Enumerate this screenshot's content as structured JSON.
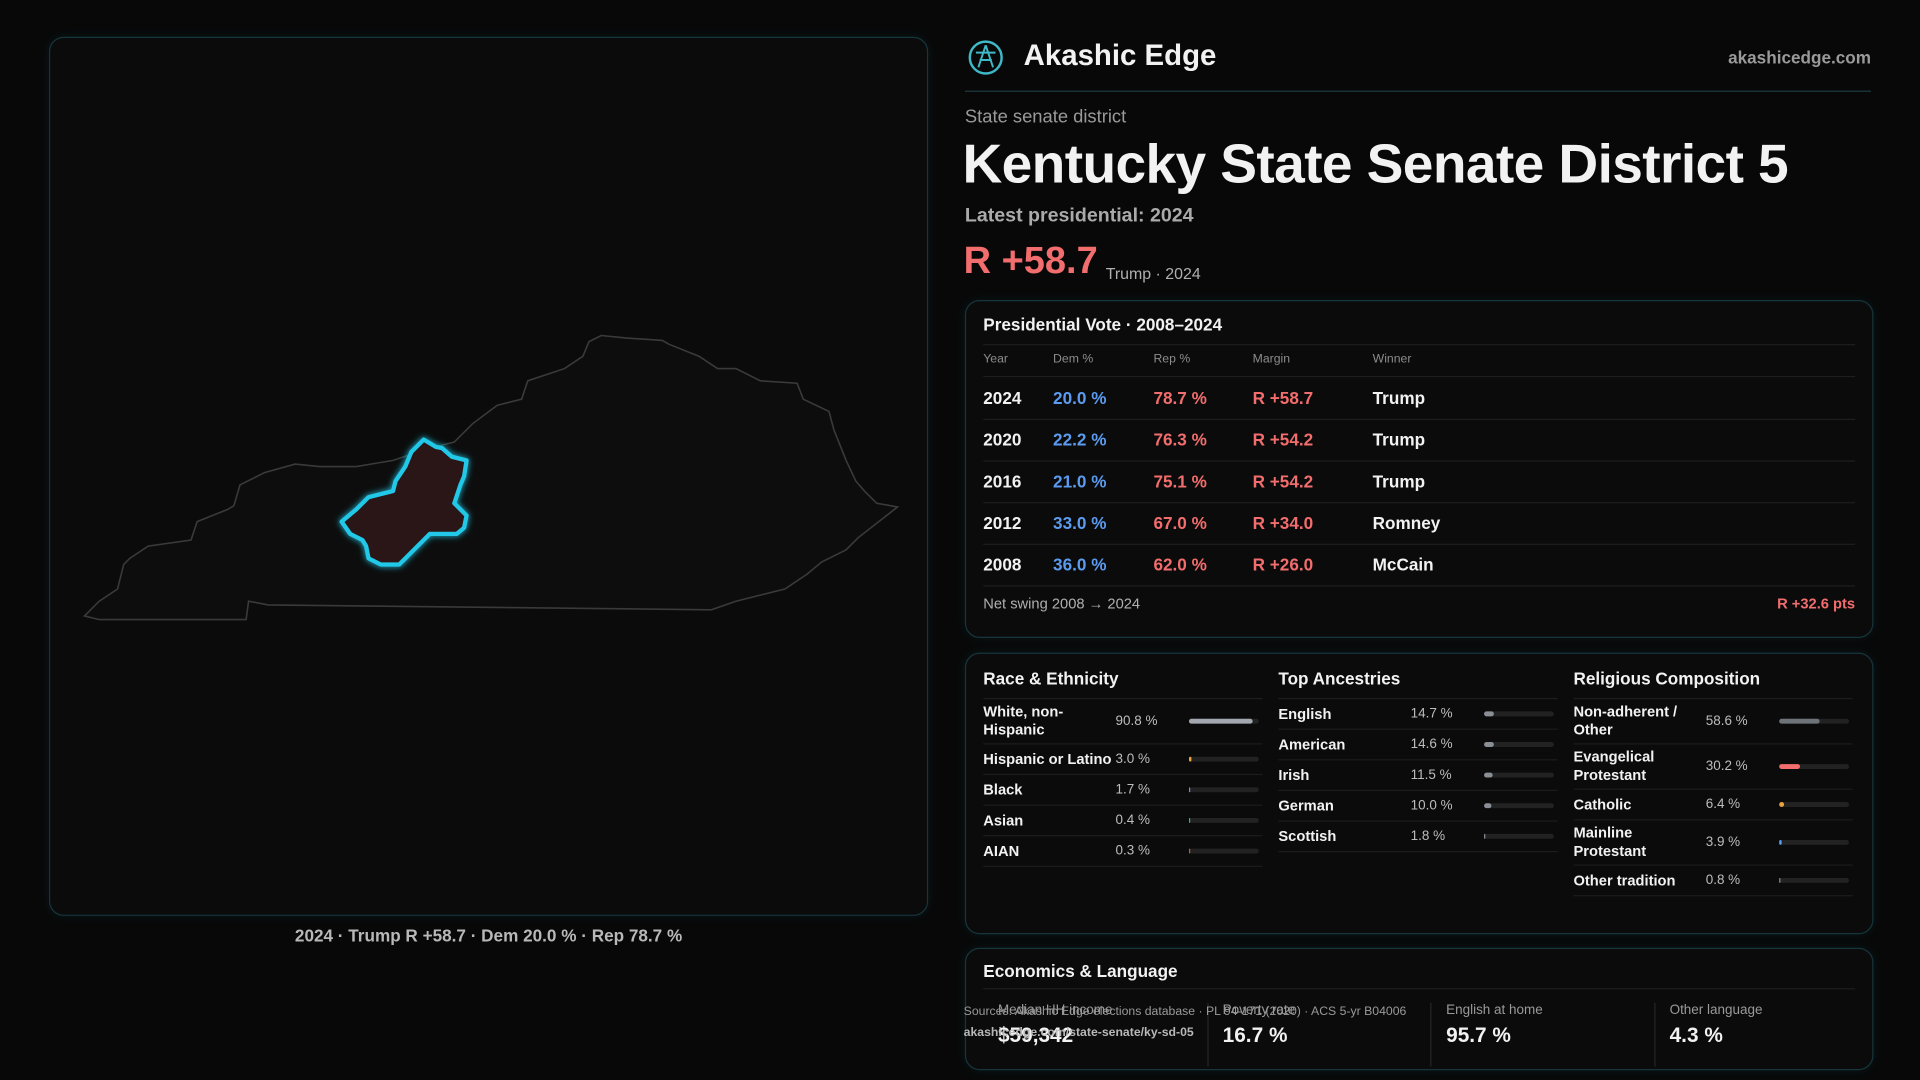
{
  "map": {
    "caption": "2024 · Trump R +58.7 · Dem 20.0 % · Rep 78.7 %"
  },
  "header": {
    "brand": "Akashic Edge",
    "site": "akashicedge.com"
  },
  "hero": {
    "eyebrow": "State senate district",
    "title": "Kentucky State Senate District 5",
    "latest": "Latest presidential: 2024",
    "margin": "R +58.7",
    "margin_note": "Trump · 2024"
  },
  "presidential": {
    "title": "Presidential Vote · 2008–2024",
    "columns": [
      "Year",
      "Dem %",
      "Rep %",
      "Margin",
      "Winner"
    ],
    "rows": [
      [
        "2024",
        "20.0 %",
        "78.7 %",
        "R +58.7",
        "Trump"
      ],
      [
        "2020",
        "22.2 %",
        "76.3 %",
        "R +54.2",
        "Trump"
      ],
      [
        "2016",
        "21.0 %",
        "75.1 %",
        "R +54.2",
        "Trump"
      ],
      [
        "2012",
        "33.0 %",
        "67.0 %",
        "R +34.0",
        "Romney"
      ],
      [
        "2008",
        "36.0 %",
        "62.0 %",
        "R +26.0",
        "McCain"
      ]
    ],
    "swing_label": "Net swing 2008 → 2024",
    "swing_value": "R +32.6 pts"
  },
  "demographics": [
    {
      "title": "Race & Ethnicity",
      "rows": [
        {
          "label": "White, non-Hispanic",
          "value": 90.8,
          "value_label": "90.8 %",
          "color": "#a3a8b0"
        },
        {
          "label": "Hispanic or Latino",
          "value": 3.0,
          "value_label": "3.0 %",
          "color": "#e8a33c"
        },
        {
          "label": "Black",
          "value": 1.7,
          "value_label": "1.7 %",
          "color": "#7a86f0"
        },
        {
          "label": "Asian",
          "value": 0.4,
          "value_label": "0.4 %",
          "color": "#2bb39a"
        },
        {
          "label": "AIAN",
          "value": 0.3,
          "value_label": "0.3 %",
          "color": "#c0583c"
        }
      ]
    },
    {
      "title": "Top Ancestries",
      "rows": [
        {
          "label": "English",
          "value": 14.7,
          "value_label": "14.7 %",
          "color": "#8a8f96"
        },
        {
          "label": "American",
          "value": 14.6,
          "value_label": "14.6 %",
          "color": "#8a8f96"
        },
        {
          "label": "Irish",
          "value": 11.5,
          "value_label": "11.5 %",
          "color": "#8a8f96"
        },
        {
          "label": "German",
          "value": 10.0,
          "value_label": "10.0 %",
          "color": "#8a8f96"
        },
        {
          "label": "Scottish",
          "value": 1.8,
          "value_label": "1.8 %",
          "color": "#8a8f96"
        }
      ]
    },
    {
      "title": "Religious Composition",
      "rows": [
        {
          "label": "Non-adherent / Other",
          "value": 58.6,
          "value_label": "58.6 %",
          "color": "#6e737a"
        },
        {
          "label": "Evangelical Protestant",
          "value": 30.2,
          "value_label": "30.2 %",
          "color": "#f26d6d"
        },
        {
          "label": "Catholic",
          "value": 6.4,
          "value_label": "6.4 %",
          "color": "#e8a33c"
        },
        {
          "label": "Mainline Protestant",
          "value": 3.9,
          "value_label": "3.9 %",
          "color": "#5b9bf0"
        },
        {
          "label": "Other tradition",
          "value": 0.8,
          "value_label": "0.8 %",
          "color": "#8a8f96"
        }
      ]
    }
  ],
  "economics": {
    "title": "Economics & Language",
    "cells": [
      {
        "label": "Median HH income",
        "value": "$59,342"
      },
      {
        "label": "Poverty rate",
        "value": "16.7 %"
      },
      {
        "label": "English at home",
        "value": "95.7 %"
      },
      {
        "label": "Other language",
        "value": "4.3 %"
      }
    ]
  },
  "sources": {
    "text": "Sources: Akashic Edge elections database · PL 94-171 (2020) · ACS 5-yr B04006",
    "url": "akashicedge.com/state-senate/ky-sd-05"
  }
}
